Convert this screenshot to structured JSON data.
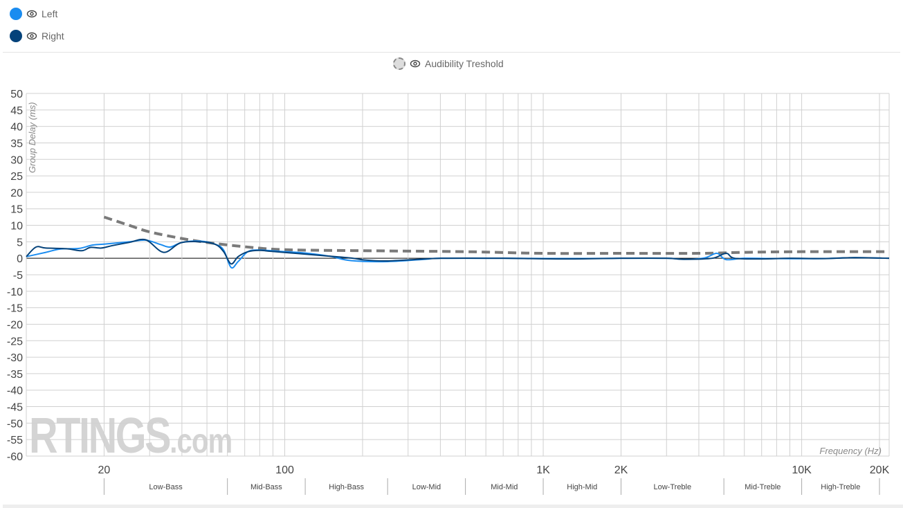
{
  "legend": {
    "series": [
      {
        "label": "Left",
        "color": "#1a8cf0",
        "icon": "eye-icon"
      },
      {
        "label": "Right",
        "color": "#04427a",
        "icon": "eye-icon"
      }
    ],
    "threshold": {
      "label": "Audibility Treshold",
      "color": "#7a7a7a",
      "icon": "eye-icon"
    }
  },
  "watermark": {
    "brand": "RTINGS",
    "suffix": ".com"
  },
  "chart_data": {
    "type": "line",
    "xscale": "log",
    "xlim": [
      10,
      21800
    ],
    "ylim": [
      -60,
      50
    ],
    "xlabel": "Frequency (Hz)",
    "ylabel": "Group Delay (ms)",
    "grid": true,
    "yticks": [
      50,
      45,
      40,
      35,
      30,
      25,
      20,
      15,
      10,
      5,
      0,
      -5,
      -10,
      -15,
      -20,
      -25,
      -30,
      -35,
      -40,
      -45,
      -50,
      -55,
      -60
    ],
    "xtick_labels": [
      {
        "f": 20,
        "label": "20"
      },
      {
        "f": 100,
        "label": "100"
      },
      {
        "f": 1000,
        "label": "1K"
      },
      {
        "f": 2000,
        "label": "2K"
      },
      {
        "f": 10000,
        "label": "10K"
      },
      {
        "f": 20000,
        "label": "20K"
      }
    ],
    "x_gridlines": [
      20,
      30,
      40,
      50,
      60,
      70,
      80,
      90,
      100,
      200,
      300,
      400,
      500,
      600,
      700,
      800,
      900,
      1000,
      2000,
      3000,
      4000,
      5000,
      6000,
      7000,
      8000,
      9000,
      10000,
      20000
    ],
    "bands": {
      "boundaries": [
        20,
        60,
        120,
        250,
        500,
        1000,
        2000,
        5000,
        10000,
        20000
      ],
      "labels": [
        "Low-Bass",
        "Mid-Bass",
        "High-Bass",
        "Low-Mid",
        "Mid-Mid",
        "High-Mid",
        "Low-Treble",
        "Mid-Treble",
        "High-Treble"
      ]
    },
    "series": [
      {
        "name": "Left",
        "color": "#1a8cf0",
        "points": [
          [
            10,
            0.5
          ],
          [
            11.9,
            1.8
          ],
          [
            13.5,
            2.8
          ],
          [
            16,
            3
          ],
          [
            18,
            4
          ],
          [
            20,
            4.3
          ],
          [
            25,
            5
          ],
          [
            29,
            5.5
          ],
          [
            33,
            4.2
          ],
          [
            36,
            3.4
          ],
          [
            40,
            4.8
          ],
          [
            47,
            5.2
          ],
          [
            54,
            4.2
          ],
          [
            58,
            2.5
          ],
          [
            62,
            -2.8
          ],
          [
            66,
            -1
          ],
          [
            72,
            2
          ],
          [
            80,
            2.5
          ],
          [
            100,
            2
          ],
          [
            120,
            1.6
          ],
          [
            150,
            0.6
          ],
          [
            180,
            -0.7
          ],
          [
            250,
            -1
          ],
          [
            350,
            -0.3
          ],
          [
            400,
            0
          ],
          [
            700,
            0
          ],
          [
            1200,
            -0.1
          ],
          [
            2000,
            0
          ],
          [
            3000,
            0
          ],
          [
            3500,
            -0.3
          ],
          [
            4200,
            0.1
          ],
          [
            4700,
            1.5
          ],
          [
            5100,
            -0.4
          ],
          [
            6000,
            0
          ],
          [
            8000,
            -0.1
          ],
          [
            12000,
            -0.1
          ],
          [
            16000,
            0.2
          ],
          [
            21800,
            0
          ]
        ]
      },
      {
        "name": "Right",
        "color": "#04427a",
        "points": [
          [
            10,
            0.5
          ],
          [
            10.9,
            3.4
          ],
          [
            11.9,
            3.1
          ],
          [
            14.3,
            2.9
          ],
          [
            16.4,
            2.3
          ],
          [
            17.7,
            3.3
          ],
          [
            19.5,
            3.1
          ],
          [
            21.4,
            3.8
          ],
          [
            25,
            4.8
          ],
          [
            29,
            5.6
          ],
          [
            34,
            1.8
          ],
          [
            39.6,
            4.7
          ],
          [
            47.6,
            5
          ],
          [
            54,
            4.2
          ],
          [
            58,
            2
          ],
          [
            62,
            -1.7
          ],
          [
            66,
            0.5
          ],
          [
            72,
            2
          ],
          [
            80,
            2.4
          ],
          [
            88.5,
            2.1
          ],
          [
            110,
            1.5
          ],
          [
            141,
            0.8
          ],
          [
            180,
            0.1
          ],
          [
            203,
            -0.5
          ],
          [
            245,
            -0.8
          ],
          [
            314,
            -0.4
          ],
          [
            400,
            0
          ],
          [
            700,
            0
          ],
          [
            1200,
            -0.2
          ],
          [
            2000,
            0
          ],
          [
            3000,
            0
          ],
          [
            3500,
            -0.3
          ],
          [
            4500,
            0
          ],
          [
            5100,
            1.5
          ],
          [
            5500,
            0
          ],
          [
            7000,
            -0.2
          ],
          [
            9000,
            0
          ],
          [
            12000,
            -0.1
          ],
          [
            16000,
            0.2
          ],
          [
            21800,
            0
          ]
        ]
      },
      {
        "name": "Audibility Treshold",
        "color": "#7a7a7a",
        "dashed": true,
        "points": [
          [
            20,
            12.5
          ],
          [
            25,
            10
          ],
          [
            30,
            8
          ],
          [
            40,
            6
          ],
          [
            50,
            4.8
          ],
          [
            70,
            3.5
          ],
          [
            100,
            2.6
          ],
          [
            200,
            2.3
          ],
          [
            500,
            2
          ],
          [
            1000,
            1.5
          ],
          [
            2000,
            1.5
          ],
          [
            4000,
            1.5
          ],
          [
            6000,
            1.8
          ],
          [
            10000,
            2
          ],
          [
            21800,
            2
          ]
        ]
      }
    ]
  }
}
